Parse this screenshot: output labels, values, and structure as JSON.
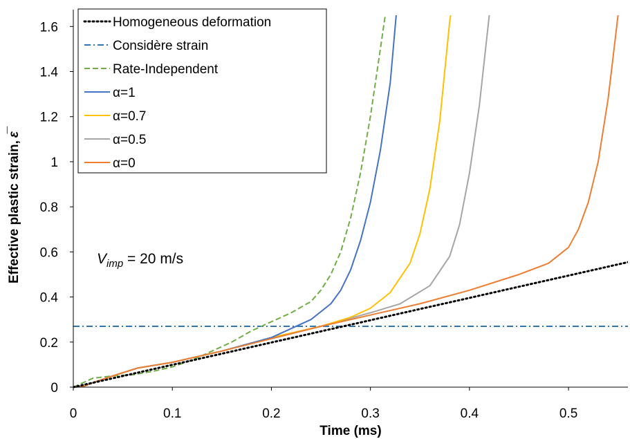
{
  "chart_data": {
    "type": "line",
    "title": "",
    "xlabel": "Time (ms)",
    "ylabel": "Effective plastic strain,",
    "ylabel_symbol": "ε̅",
    "xlim": [
      0,
      0.56
    ],
    "ylim": [
      0,
      1.65
    ],
    "xticks": [
      0,
      0.1,
      0.2,
      0.3,
      0.4,
      0.5
    ],
    "xtick_labels": [
      "0",
      "0.1",
      "0.2",
      "0.3",
      "0.4",
      "0.5"
    ],
    "yticks": [
      0,
      0.2,
      0.4,
      0.6,
      0.8,
      1.0,
      1.2,
      1.4,
      1.6
    ],
    "ytick_labels": [
      "0",
      "0.2",
      "0.4",
      "0.6",
      "0.8",
      "1",
      "1.2",
      "1.4",
      "1.6"
    ],
    "grid": false,
    "legend_position": "top-left",
    "annotation": {
      "main": "V",
      "sub": "imp",
      "rest": " = 20 m/s"
    },
    "series": [
      {
        "name": "Homogeneous deformation",
        "color": "#000000",
        "dash": "dotted",
        "x": [
          0,
          0.05,
          0.1,
          0.15,
          0.2,
          0.25,
          0.3,
          0.35,
          0.4,
          0.45,
          0.5,
          0.56
        ],
        "y": [
          0,
          0.0495,
          0.099,
          0.1485,
          0.198,
          0.2475,
          0.297,
          0.3465,
          0.396,
          0.4455,
          0.495,
          0.5544
        ]
      },
      {
        "name": "Considère strain",
        "color": "#2E75B6",
        "dash": "dashdot",
        "x": [
          0,
          0.56
        ],
        "y": [
          0.27,
          0.27
        ]
      },
      {
        "name": "Rate-Independent",
        "color": "#70AD47",
        "dash": "dashed",
        "x": [
          0,
          0.01,
          0.02,
          0.04,
          0.06,
          0.08,
          0.1,
          0.12,
          0.14,
          0.16,
          0.18,
          0.2,
          0.22,
          0.24,
          0.25,
          0.26,
          0.27,
          0.28,
          0.29,
          0.3,
          0.31,
          0.315
        ],
        "y": [
          0,
          0.02,
          0.04,
          0.05,
          0.055,
          0.07,
          0.09,
          0.12,
          0.16,
          0.2,
          0.25,
          0.29,
          0.33,
          0.38,
          0.43,
          0.5,
          0.6,
          0.75,
          0.95,
          1.2,
          1.5,
          1.65
        ]
      },
      {
        "name": "α=1",
        "color": "#4472C4",
        "dash": "solid",
        "x": [
          0,
          0.01,
          0.02,
          0.04,
          0.065,
          0.1,
          0.15,
          0.2,
          0.22,
          0.24,
          0.26,
          0.27,
          0.28,
          0.29,
          0.3,
          0.31,
          0.32,
          0.326
        ],
        "y": [
          0,
          0.003,
          0.02,
          0.05,
          0.085,
          0.11,
          0.16,
          0.22,
          0.26,
          0.3,
          0.37,
          0.43,
          0.52,
          0.65,
          0.82,
          1.05,
          1.35,
          1.65
        ]
      },
      {
        "name": "α=0.7",
        "color": "#FFC000",
        "dash": "solid",
        "x": [
          0,
          0.01,
          0.02,
          0.04,
          0.065,
          0.1,
          0.15,
          0.2,
          0.25,
          0.28,
          0.3,
          0.32,
          0.34,
          0.35,
          0.36,
          0.37,
          0.38,
          0.381
        ],
        "y": [
          0,
          0.003,
          0.02,
          0.05,
          0.085,
          0.11,
          0.16,
          0.22,
          0.27,
          0.31,
          0.35,
          0.42,
          0.55,
          0.68,
          0.88,
          1.18,
          1.62,
          1.65
        ]
      },
      {
        "name": "α=0.5",
        "color": "#A5A5A5",
        "dash": "solid",
        "x": [
          0,
          0.01,
          0.02,
          0.04,
          0.065,
          0.1,
          0.15,
          0.2,
          0.25,
          0.3,
          0.33,
          0.36,
          0.38,
          0.39,
          0.4,
          0.41,
          0.42
        ],
        "y": [
          0,
          0.003,
          0.02,
          0.05,
          0.085,
          0.11,
          0.16,
          0.22,
          0.27,
          0.33,
          0.37,
          0.45,
          0.58,
          0.72,
          0.95,
          1.25,
          1.65
        ]
      },
      {
        "name": "α=0",
        "color": "#ED7D31",
        "dash": "solid",
        "x": [
          0,
          0.01,
          0.02,
          0.04,
          0.065,
          0.1,
          0.15,
          0.2,
          0.25,
          0.3,
          0.35,
          0.4,
          0.45,
          0.48,
          0.5,
          0.51,
          0.52,
          0.53,
          0.54,
          0.55
        ],
        "y": [
          0,
          0.003,
          0.02,
          0.05,
          0.085,
          0.11,
          0.16,
          0.215,
          0.27,
          0.32,
          0.37,
          0.43,
          0.5,
          0.55,
          0.62,
          0.7,
          0.82,
          1.0,
          1.28,
          1.65
        ]
      }
    ]
  }
}
